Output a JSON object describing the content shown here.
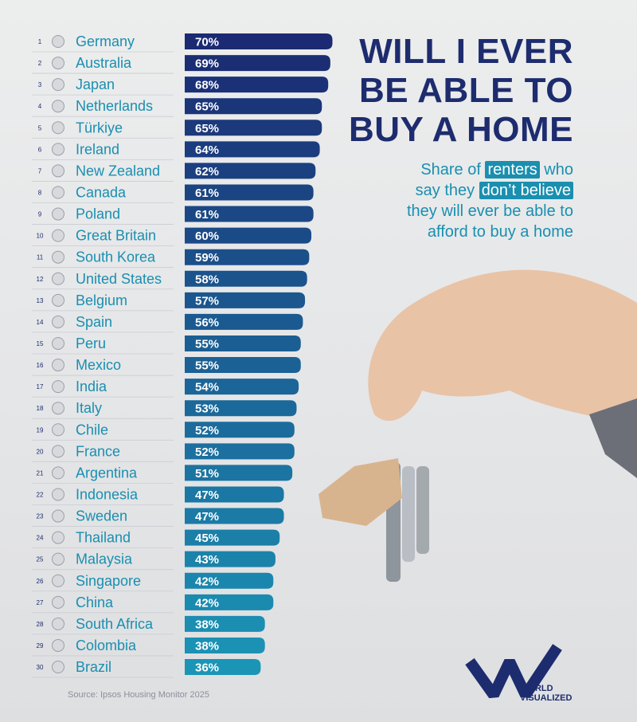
{
  "chart_data": {
    "type": "bar",
    "title": [
      "WILL I EVER",
      "BE ABLE TO",
      "BUY A HOME"
    ],
    "subtitle": [
      "Share of",
      "renters",
      "who",
      "say they",
      "don’t believe",
      "they will ever be able to",
      "afford to buy a home"
    ],
    "source": "Source: Ipsos Housing Monitor 2025",
    "brand": [
      "WORLD",
      "VISUALIZED"
    ],
    "ranks": [
      1,
      2,
      3,
      4,
      5,
      6,
      7,
      8,
      9,
      10,
      11,
      12,
      13,
      14,
      15,
      16,
      17,
      18,
      19,
      20,
      21,
      22,
      23,
      24,
      25,
      26,
      27,
      28,
      29,
      30
    ],
    "categories": [
      "Germany",
      "Australia",
      "Japan",
      "Netherlands",
      "Türkiye",
      "Ireland",
      "New Zealand",
      "Canada",
      "Poland",
      "Great Britain",
      "South Korea",
      "United States",
      "Belgium",
      "Spain",
      "Peru",
      "Mexico",
      "India",
      "Italy",
      "Chile",
      "France",
      "Argentina",
      "Indonesia",
      "Sweden",
      "Thailand",
      "Malaysia",
      "Singapore",
      "China",
      "South Africa",
      "Colombia",
      "Brazil"
    ],
    "values": [
      70,
      69,
      68,
      65,
      65,
      64,
      62,
      61,
      61,
      60,
      59,
      58,
      57,
      56,
      55,
      55,
      54,
      53,
      52,
      52,
      51,
      47,
      47,
      45,
      43,
      42,
      42,
      38,
      38,
      36
    ],
    "value_labels": [
      "70%",
      "69%",
      "68%",
      "65%",
      "65%",
      "64%",
      "62%",
      "61%",
      "61%",
      "60%",
      "59%",
      "58%",
      "57%",
      "56%",
      "55%",
      "55%",
      "54%",
      "53%",
      "52%",
      "52%",
      "51%",
      "47%",
      "47%",
      "45%",
      "43%",
      "42%",
      "42%",
      "38%",
      "38%",
      "36%"
    ],
    "colors": [
      "#1b2a72",
      "#1b95b6"
    ]
  }
}
